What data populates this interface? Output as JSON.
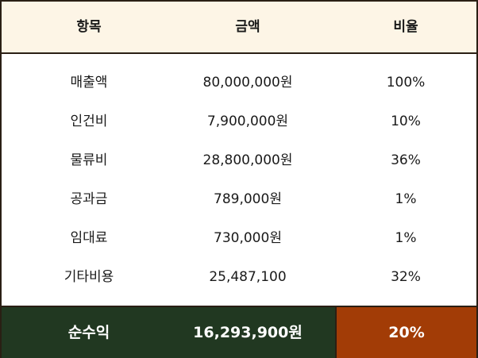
{
  "header": {
    "item": "항목",
    "amount": "금액",
    "ratio": "비율"
  },
  "rows": [
    {
      "item": "매출액",
      "amount": "80,000,000원",
      "ratio": "100%"
    },
    {
      "item": "인건비",
      "amount": "7,900,000원",
      "ratio": "10%"
    },
    {
      "item": "물류비",
      "amount": "28,800,000원",
      "ratio": "36%"
    },
    {
      "item": "공과금",
      "amount": "789,000원",
      "ratio": "1%"
    },
    {
      "item": "임대료",
      "amount": "730,000원",
      "ratio": "1%"
    },
    {
      "item": "기타비용",
      "amount": "25,487,100",
      "ratio": "32%"
    }
  ],
  "total": {
    "item": "순수익",
    "amount": "16,293,900원",
    "ratio": "20%"
  },
  "colors": {
    "header_bg": "#fdf5e6",
    "total_bg": "#213821",
    "ratio_highlight_bg": "#a23c06",
    "border": "#2a1f14"
  }
}
